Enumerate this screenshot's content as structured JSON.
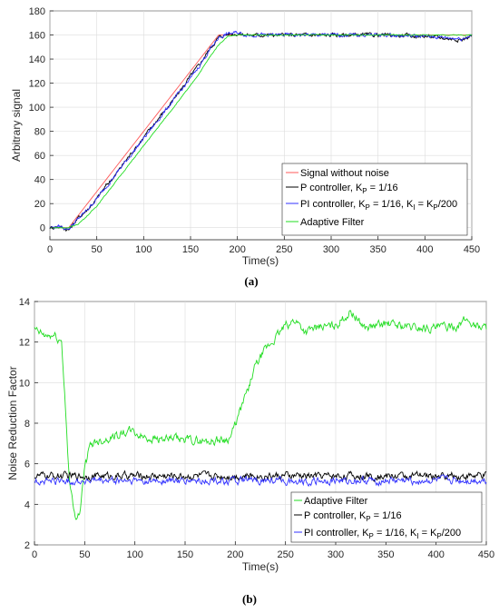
{
  "chart_data": [
    {
      "panel": "(a)",
      "type": "line",
      "xlabel": "Time(s)",
      "ylabel": "Arbitrary signal",
      "xlim": [
        0,
        450
      ],
      "ylim": [
        -10,
        180
      ],
      "xticks": [
        0,
        50,
        100,
        150,
        200,
        250,
        300,
        350,
        400,
        450
      ],
      "yticks": [
        0,
        20,
        40,
        60,
        80,
        100,
        120,
        140,
        160,
        180
      ],
      "legend_position": "lower-right",
      "series": [
        {
          "name": "Signal without noise",
          "color": "#ff5a5a",
          "x": [
            0,
            20,
            180,
            450
          ],
          "y": [
            0,
            0,
            160,
            160
          ]
        },
        {
          "name": "P controller, K_P = 1/16",
          "color": "#000000",
          "x": [
            0,
            10,
            20,
            30,
            40,
            50,
            60,
            70,
            80,
            90,
            100,
            110,
            120,
            130,
            140,
            150,
            160,
            170,
            180,
            190,
            200,
            210,
            250,
            300,
            350,
            400,
            440,
            450
          ],
          "y": [
            0,
            1,
            -2,
            8,
            15,
            24,
            35,
            44,
            55,
            65,
            75,
            85,
            95,
            104,
            115,
            126,
            136,
            148,
            158,
            161,
            161,
            160,
            160,
            160,
            160,
            159,
            156,
            160
          ]
        },
        {
          "name": "PI controller, K_P = 1/16, K_I = K_P/200",
          "color": "#3232ff",
          "x": [
            0,
            10,
            20,
            30,
            40,
            50,
            60,
            70,
            80,
            90,
            100,
            110,
            120,
            130,
            140,
            150,
            160,
            170,
            180,
            190,
            200,
            210,
            250,
            300,
            350,
            400,
            440,
            450
          ],
          "y": [
            0,
            1,
            -1,
            7,
            15,
            24,
            34,
            44,
            54,
            64,
            74,
            84,
            94,
            104,
            114,
            124,
            135,
            147,
            158,
            161,
            162,
            160,
            160,
            160,
            160,
            159,
            157,
            160
          ]
        },
        {
          "name": "Adaptive Filter",
          "color": "#22dd22",
          "x": [
            0,
            10,
            20,
            30,
            40,
            50,
            60,
            70,
            80,
            90,
            100,
            110,
            120,
            130,
            140,
            150,
            160,
            170,
            180,
            190,
            200,
            210,
            250,
            300,
            350,
            400,
            440,
            450
          ],
          "y": [
            0,
            0,
            0,
            3,
            10,
            18,
            28,
            38,
            48,
            58,
            68,
            78,
            88,
            98,
            108,
            118,
            129,
            141,
            152,
            159,
            160,
            160,
            160,
            160,
            160,
            160,
            160,
            160
          ]
        }
      ]
    },
    {
      "panel": "(b)",
      "type": "line",
      "xlabel": "Time(s)",
      "ylabel": "Noise Reduction Factor",
      "xlim": [
        0,
        450
      ],
      "ylim": [
        2,
        14
      ],
      "xticks": [
        0,
        50,
        100,
        150,
        200,
        250,
        300,
        350,
        400,
        450
      ],
      "yticks": [
        2,
        4,
        6,
        8,
        10,
        12,
        14
      ],
      "legend_position": "lower-right",
      "series": [
        {
          "name": "Adaptive Filter",
          "color": "#22dd22",
          "x": [
            0,
            10,
            20,
            27,
            30,
            35,
            40,
            45,
            50,
            55,
            60,
            70,
            80,
            95,
            110,
            130,
            150,
            170,
            190,
            195,
            200,
            205,
            210,
            220,
            230,
            240,
            250,
            260,
            270,
            280,
            300,
            315,
            330,
            350,
            380,
            400,
            420,
            430,
            440,
            450
          ],
          "y": [
            12.6,
            12.3,
            12.3,
            12.0,
            9.5,
            5.0,
            3.4,
            3.6,
            5.8,
            6.8,
            7.1,
            7.2,
            7.4,
            7.6,
            7.3,
            7.2,
            7.2,
            7.1,
            7.2,
            7.3,
            7.9,
            8.6,
            9.3,
            10.8,
            11.6,
            12.2,
            12.8,
            13.1,
            12.5,
            12.7,
            12.8,
            13.5,
            12.7,
            12.9,
            12.7,
            12.7,
            12.8,
            13.1,
            12.8,
            12.7
          ]
        },
        {
          "name": "P controller, K_P = 1/16",
          "color": "#000000",
          "x": [
            0,
            450
          ],
          "y": [
            5.4,
            5.4
          ]
        },
        {
          "name": "PI controller, K_P = 1/16, K_I = K_P/200",
          "color": "#3232ff",
          "x": [
            0,
            450
          ],
          "y": [
            5.15,
            5.15
          ]
        }
      ]
    }
  ],
  "legend_a": {
    "item1": "Signal without noise",
    "item2_pre": "P controller, K",
    "item2_sub": "P",
    "item2_post": " = 1/16",
    "item3_pre": "PI controller, K",
    "item3_sub1": "P",
    "item3_mid": " = 1/16, K",
    "item3_sub2": "I",
    "item3_mid2": " = K",
    "item3_sub3": "P",
    "item3_post": "/200",
    "item4": "Adaptive Filter"
  },
  "legend_b": {
    "item1": "Adaptive Filter",
    "item2_pre": "P controller, K",
    "item2_sub": "P",
    "item2_post": " = 1/16",
    "item3_pre": "PI controller, K",
    "item3_sub1": "P",
    "item3_mid": " = 1/16, K",
    "item3_sub2": "I",
    "item3_mid2": " = K",
    "item3_sub3": "P",
    "item3_post": "/200"
  },
  "captions": {
    "a": "(a)",
    "b": "(b)"
  },
  "colors": {
    "axes": "#262626",
    "grid": "#dcdcdc"
  }
}
